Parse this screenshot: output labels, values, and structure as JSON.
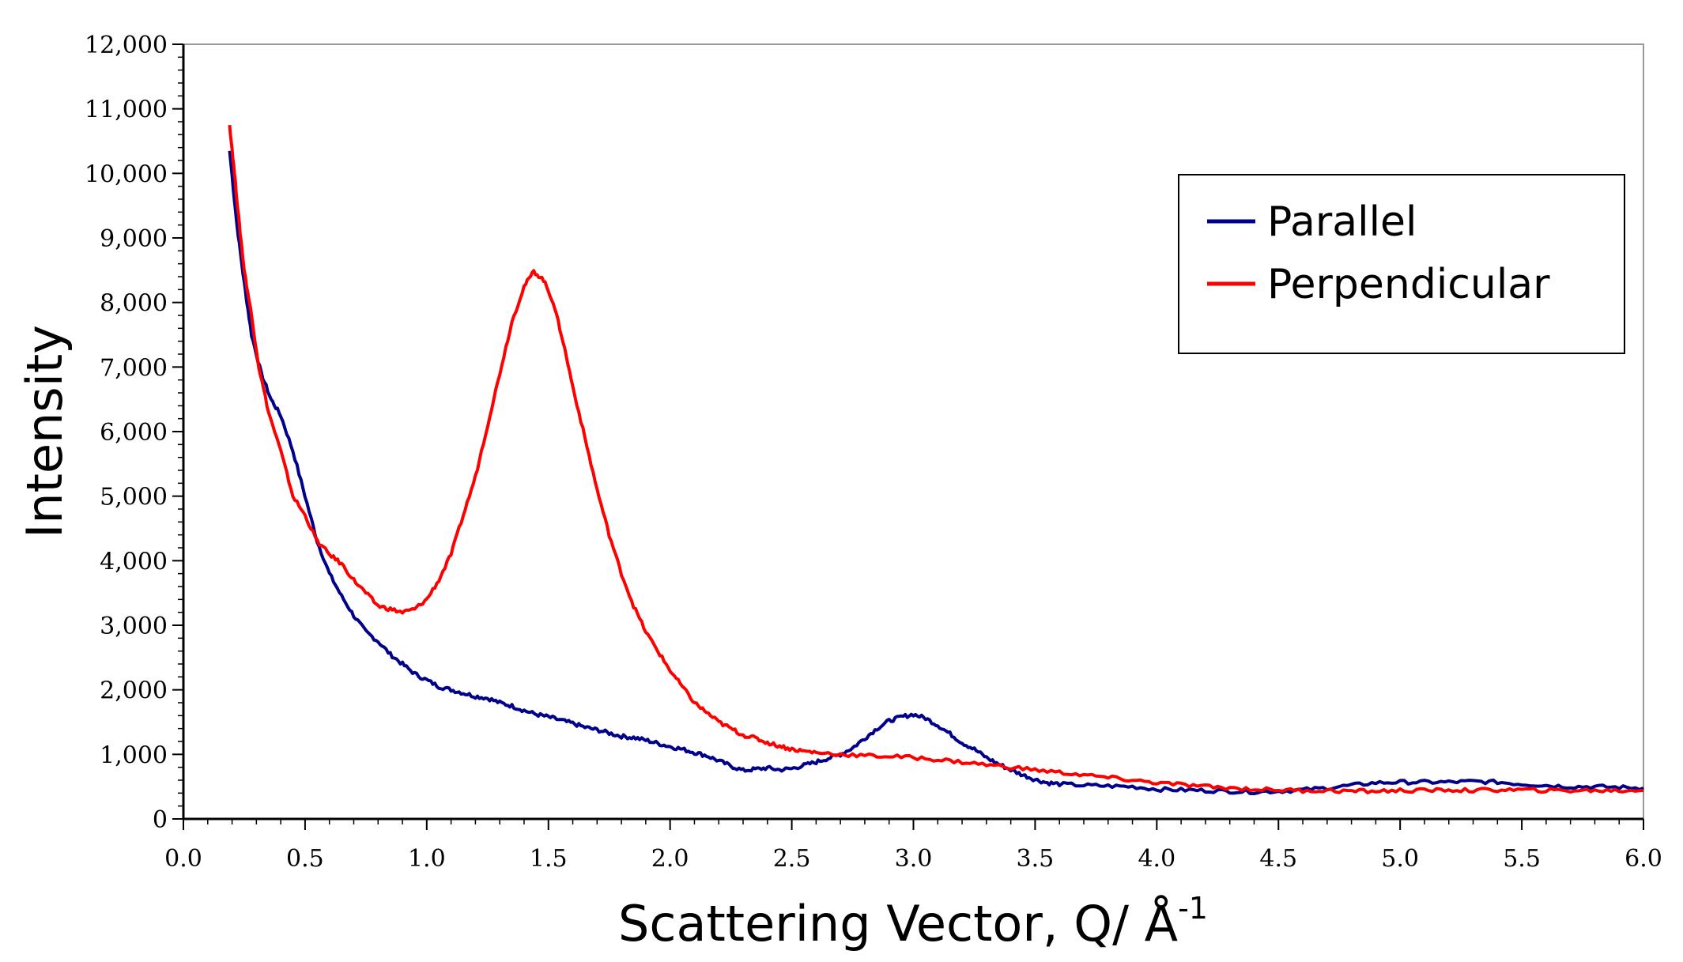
{
  "chart_data": {
    "type": "line",
    "title": "",
    "xlabel": "Scattering Vector, Q/ Å",
    "xlabel_superscript": "-1",
    "ylabel": "Intensity",
    "xlim": [
      0,
      6
    ],
    "ylim": [
      0,
      12000
    ],
    "x_ticks": [
      "0.0",
      "0.5",
      "1.0",
      "1.5",
      "2.0",
      "2.5",
      "3.0",
      "3.5",
      "4.0",
      "4.5",
      "5.0",
      "5.5",
      "6.0"
    ],
    "y_ticks": [
      "0",
      "1,000",
      "2,000",
      "3,000",
      "4,000",
      "5,000",
      "6,000",
      "7,000",
      "8,000",
      "9,000",
      "10,000",
      "11,000",
      "12,000"
    ],
    "grid": false,
    "legend_position": "top-right",
    "series": [
      {
        "name": "Parallel",
        "color": "#00008B",
        "points": [
          [
            0.19,
            10350
          ],
          [
            0.22,
            9200
          ],
          [
            0.25,
            8300
          ],
          [
            0.28,
            7500
          ],
          [
            0.32,
            6900
          ],
          [
            0.36,
            6500
          ],
          [
            0.4,
            6250
          ],
          [
            0.45,
            5700
          ],
          [
            0.5,
            5000
          ],
          [
            0.55,
            4300
          ],
          [
            0.6,
            3800
          ],
          [
            0.65,
            3450
          ],
          [
            0.7,
            3150
          ],
          [
            0.75,
            2900
          ],
          [
            0.8,
            2750
          ],
          [
            0.85,
            2550
          ],
          [
            0.9,
            2400
          ],
          [
            0.95,
            2250
          ],
          [
            1.0,
            2150
          ],
          [
            1.05,
            2050
          ],
          [
            1.1,
            2000
          ],
          [
            1.15,
            1950
          ],
          [
            1.2,
            1900
          ],
          [
            1.25,
            1870
          ],
          [
            1.3,
            1800
          ],
          [
            1.35,
            1750
          ],
          [
            1.4,
            1680
          ],
          [
            1.45,
            1620
          ],
          [
            1.5,
            1580
          ],
          [
            1.55,
            1530
          ],
          [
            1.6,
            1480
          ],
          [
            1.65,
            1420
          ],
          [
            1.7,
            1380
          ],
          [
            1.75,
            1330
          ],
          [
            1.8,
            1280
          ],
          [
            1.85,
            1260
          ],
          [
            1.9,
            1220
          ],
          [
            1.95,
            1170
          ],
          [
            2.0,
            1120
          ],
          [
            2.05,
            1080
          ],
          [
            2.1,
            1030
          ],
          [
            2.15,
            980
          ],
          [
            2.2,
            900
          ],
          [
            2.25,
            820
          ],
          [
            2.3,
            750
          ],
          [
            2.35,
            770
          ],
          [
            2.4,
            790
          ],
          [
            2.45,
            760
          ],
          [
            2.5,
            780
          ],
          [
            2.55,
            830
          ],
          [
            2.6,
            880
          ],
          [
            2.65,
            940
          ],
          [
            2.7,
            1000
          ],
          [
            2.75,
            1100
          ],
          [
            2.8,
            1250
          ],
          [
            2.85,
            1400
          ],
          [
            2.9,
            1520
          ],
          [
            2.95,
            1580
          ],
          [
            3.0,
            1620
          ],
          [
            3.05,
            1560
          ],
          [
            3.1,
            1450
          ],
          [
            3.15,
            1320
          ],
          [
            3.2,
            1180
          ],
          [
            3.25,
            1080
          ],
          [
            3.3,
            950
          ],
          [
            3.35,
            850
          ],
          [
            3.4,
            760
          ],
          [
            3.45,
            680
          ],
          [
            3.5,
            610
          ],
          [
            3.55,
            560
          ],
          [
            3.6,
            540
          ],
          [
            3.7,
            520
          ],
          [
            3.8,
            510
          ],
          [
            3.9,
            500
          ],
          [
            4.0,
            460
          ],
          [
            4.1,
            450
          ],
          [
            4.2,
            440
          ],
          [
            4.3,
            430
          ],
          [
            4.4,
            420
          ],
          [
            4.5,
            430
          ],
          [
            4.6,
            450
          ],
          [
            4.7,
            480
          ],
          [
            4.8,
            520
          ],
          [
            4.9,
            560
          ],
          [
            5.0,
            570
          ],
          [
            5.1,
            570
          ],
          [
            5.2,
            570
          ],
          [
            5.3,
            580
          ],
          [
            5.4,
            570
          ],
          [
            5.5,
            540
          ],
          [
            5.6,
            520
          ],
          [
            5.7,
            500
          ],
          [
            5.8,
            500
          ],
          [
            5.9,
            490
          ],
          [
            6.0,
            480
          ]
        ]
      },
      {
        "name": "Perpendicular",
        "color": "#FF0000",
        "points": [
          [
            0.19,
            10750
          ],
          [
            0.21,
            10000
          ],
          [
            0.23,
            9200
          ],
          [
            0.25,
            8500
          ],
          [
            0.28,
            7800
          ],
          [
            0.31,
            7000
          ],
          [
            0.35,
            6300
          ],
          [
            0.4,
            5700
          ],
          [
            0.45,
            5000
          ],
          [
            0.5,
            4700
          ],
          [
            0.55,
            4300
          ],
          [
            0.6,
            4100
          ],
          [
            0.65,
            3950
          ],
          [
            0.7,
            3700
          ],
          [
            0.75,
            3500
          ],
          [
            0.8,
            3300
          ],
          [
            0.85,
            3250
          ],
          [
            0.9,
            3200
          ],
          [
            0.95,
            3250
          ],
          [
            1.0,
            3400
          ],
          [
            1.05,
            3700
          ],
          [
            1.1,
            4100
          ],
          [
            1.15,
            4700
          ],
          [
            1.2,
            5300
          ],
          [
            1.25,
            6100
          ],
          [
            1.3,
            6900
          ],
          [
            1.35,
            7700
          ],
          [
            1.4,
            8250
          ],
          [
            1.44,
            8480
          ],
          [
            1.48,
            8350
          ],
          [
            1.52,
            8000
          ],
          [
            1.56,
            7400
          ],
          [
            1.6,
            6700
          ],
          [
            1.65,
            5900
          ],
          [
            1.7,
            5100
          ],
          [
            1.75,
            4400
          ],
          [
            1.8,
            3800
          ],
          [
            1.85,
            3300
          ],
          [
            1.9,
            2900
          ],
          [
            1.95,
            2600
          ],
          [
            2.0,
            2300
          ],
          [
            2.05,
            2050
          ],
          [
            2.1,
            1800
          ],
          [
            2.15,
            1650
          ],
          [
            2.2,
            1500
          ],
          [
            2.25,
            1400
          ],
          [
            2.3,
            1300
          ],
          [
            2.35,
            1250
          ],
          [
            2.4,
            1180
          ],
          [
            2.45,
            1130
          ],
          [
            2.5,
            1080
          ],
          [
            2.55,
            1050
          ],
          [
            2.6,
            1030
          ],
          [
            2.7,
            1000
          ],
          [
            2.8,
            980
          ],
          [
            2.9,
            970
          ],
          [
            3.0,
            950
          ],
          [
            3.1,
            920
          ],
          [
            3.2,
            880
          ],
          [
            3.3,
            840
          ],
          [
            3.4,
            800
          ],
          [
            3.5,
            760
          ],
          [
            3.6,
            720
          ],
          [
            3.7,
            680
          ],
          [
            3.8,
            640
          ],
          [
            3.9,
            600
          ],
          [
            4.0,
            560
          ],
          [
            4.1,
            530
          ],
          [
            4.2,
            500
          ],
          [
            4.3,
            480
          ],
          [
            4.4,
            460
          ],
          [
            4.5,
            450
          ],
          [
            4.6,
            440
          ],
          [
            4.7,
            440
          ],
          [
            4.8,
            430
          ],
          [
            4.9,
            430
          ],
          [
            5.0,
            440
          ],
          [
            5.1,
            440
          ],
          [
            5.2,
            450
          ],
          [
            5.3,
            440
          ],
          [
            5.4,
            450
          ],
          [
            5.5,
            450
          ],
          [
            5.6,
            440
          ],
          [
            5.7,
            440
          ],
          [
            5.8,
            440
          ],
          [
            5.9,
            440
          ],
          [
            6.0,
            440
          ]
        ]
      }
    ]
  }
}
